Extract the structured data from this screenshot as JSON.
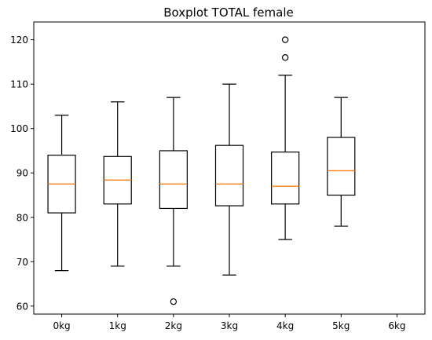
{
  "chart_data": {
    "type": "boxplot",
    "title": "Boxplot TOTAL female",
    "xlabel": "",
    "ylabel": "",
    "categories": [
      "0kg",
      "1kg",
      "2kg",
      "3kg",
      "4kg",
      "5kg",
      "6kg"
    ],
    "ylim": [
      58.2,
      124.0
    ],
    "yticks": [
      60,
      70,
      80,
      90,
      100,
      110,
      120
    ],
    "boxes": [
      {
        "category": "0kg",
        "whisker_low": 68,
        "q1": 81,
        "median": 87.5,
        "q3": 94,
        "whisker_high": 103,
        "outliers": []
      },
      {
        "category": "1kg",
        "whisker_low": 69,
        "q1": 83,
        "median": 88.4,
        "q3": 93.7,
        "whisker_high": 106,
        "outliers": []
      },
      {
        "category": "2kg",
        "whisker_low": 69,
        "q1": 82,
        "median": 87.5,
        "q3": 95,
        "whisker_high": 107,
        "outliers": [
          61
        ]
      },
      {
        "category": "3kg",
        "whisker_low": 67,
        "q1": 82.6,
        "median": 87.5,
        "q3": 96.2,
        "whisker_high": 110,
        "outliers": []
      },
      {
        "category": "4kg",
        "whisker_low": 75,
        "q1": 83,
        "median": 87,
        "q3": 94.7,
        "whisker_high": 112,
        "outliers": [
          116,
          120
        ]
      },
      {
        "category": "5kg",
        "whisker_low": 78,
        "q1": 85,
        "median": 90.5,
        "q3": 98,
        "whisker_high": 107,
        "outliers": []
      }
    ],
    "grid": false,
    "colors": {
      "box": "#000000",
      "median": "#ff7f0e",
      "outlier": "#000000"
    }
  }
}
